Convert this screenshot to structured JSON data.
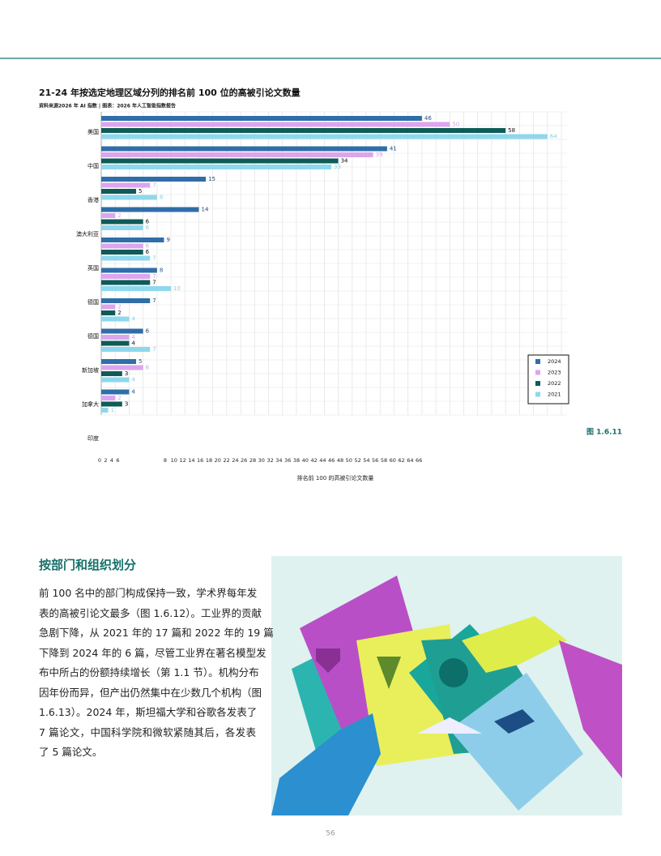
{
  "header": {
    "page_number": "56"
  },
  "chart_data": {
    "type": "hbar",
    "title": "21-24 年按选定地理区域分列的排名前 100 位的高被引论文数量",
    "subtitle": "资料来源2026 年 AI 指数 | 图表：2026 年人工智能指数报告",
    "x_label": "排名前 100 的高被引论文数量",
    "figure_label": "图 1.6.11",
    "categories": [
      "美国",
      "中国",
      "香港",
      "澳大利亚",
      "英国",
      "德国",
      "德国",
      "新加坡",
      "加拿大",
      "印度"
    ],
    "series": [
      {
        "name": "2024",
        "color": "#2f6ea8",
        "values": [
          46,
          41,
          15,
          14,
          9,
          8,
          7,
          6,
          5,
          4
        ]
      },
      {
        "name": "2023",
        "color": "#dba6ee",
        "values": [
          50,
          39,
          7,
          2,
          6,
          7,
          2,
          4,
          6,
          2
        ]
      },
      {
        "name": "2022",
        "color": "#0f5b57",
        "values": [
          58,
          34,
          5,
          6,
          6,
          7,
          2,
          4,
          3,
          3
        ]
      },
      {
        "name": "2021",
        "color": "#8fd7ec",
        "values": [
          64,
          33,
          8,
          6,
          7,
          10,
          4,
          7,
          4,
          1
        ]
      }
    ],
    "xlim": [
      0,
      66
    ],
    "xticks": [
      0,
      2,
      4,
      6,
      8,
      10,
      12,
      14,
      16,
      18,
      20,
      22,
      24,
      26,
      28,
      30,
      32,
      34,
      36,
      38,
      40,
      42,
      44,
      46,
      48,
      50,
      52,
      54,
      56,
      58,
      60,
      62,
      64,
      66
    ],
    "grid": true,
    "legend": "lower right"
  },
  "section": {
    "heading": "按部门和组织划分",
    "lines": [
      "前 100 名中的部门构成保持一致，学术界每年发",
      "表的高被引论文最多（图 1.6.12）。工业界的贡献",
      "急剧下降，从 2021 年的 17 篇和 2022 年的 19 篇",
      "下降到 2024 年的 6 篇，尽管工业界在著名模型发",
      "布中所占的份额持续增长（第 1.1 节）。机构分布",
      "因年份而异，但产出仍然集中在少数几个机构（图",
      "1.6.13）。2024 年，斯坦福大学和谷歌各发表了",
      "7 篇论文，中国科学院和微软紧随其后，各发表",
      "了 5 篇论文。"
    ]
  }
}
